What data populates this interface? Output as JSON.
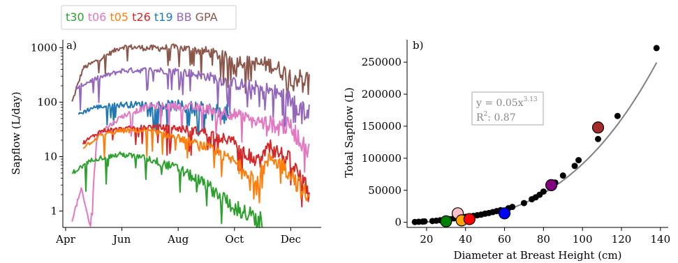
{
  "legend": {
    "entries": [
      {
        "label": "t30",
        "color": "#2ca02c"
      },
      {
        "label": "t06",
        "color": "#e377c2"
      },
      {
        "label": "t05",
        "color": "#ff7f0e"
      },
      {
        "label": "t26",
        "color": "#d62728"
      },
      {
        "label": "t19",
        "color": "#1f77b4"
      },
      {
        "label": "BB",
        "color": "#9467bd"
      },
      {
        "label": "GPA",
        "color": "#8c564b"
      }
    ]
  },
  "chart_data": [
    {
      "type": "line",
      "panel_label": "a)",
      "ylabel": "Sapflow (L/day)",
      "yscale": "log",
      "ylim": [
        0.5,
        1400
      ],
      "yticks": [
        1,
        10,
        100,
        1000
      ],
      "ytick_labels": [
        "1",
        "10",
        "100",
        "1000"
      ],
      "xlim": [
        "2021-03-29",
        "2022-01-03"
      ],
      "xticks": [
        "2021-04-01",
        "2021-06-01",
        "2021-08-01",
        "2021-10-01",
        "2021-12-01"
      ],
      "xtick_labels": [
        "Apr",
        "Jun",
        "Aug",
        "Oct",
        "Dec"
      ],
      "series": [
        {
          "name": "GPA",
          "color": "#8c564b",
          "start": "2021-04-08",
          "end": "2021-12-21",
          "points": [
            [
              "2021-04-08",
              100
            ],
            [
              "2021-04-20",
              420
            ],
            [
              "2021-05-10",
              650
            ],
            [
              "2021-06-01",
              1050
            ],
            [
              "2021-07-01",
              980
            ],
            [
              "2021-08-01",
              1000
            ],
            [
              "2021-09-01",
              850
            ],
            [
              "2021-10-01",
              600
            ],
            [
              "2021-10-20",
              520
            ],
            [
              "2021-11-10",
              480
            ],
            [
              "2021-12-01",
              300
            ],
            [
              "2021-12-21",
              250
            ]
          ]
        },
        {
          "name": "BB",
          "color": "#9467bd",
          "start": "2021-04-12",
          "end": "2021-12-21",
          "points": [
            [
              "2021-04-12",
              180
            ],
            [
              "2021-05-01",
              260
            ],
            [
              "2021-06-01",
              380
            ],
            [
              "2021-07-01",
              390
            ],
            [
              "2021-08-01",
              370
            ],
            [
              "2021-09-01",
              300
            ],
            [
              "2021-10-01",
              220
            ],
            [
              "2021-10-20",
              190
            ],
            [
              "2021-11-10",
              160
            ],
            [
              "2021-12-01",
              110
            ],
            [
              "2021-12-21",
              60
            ]
          ]
        },
        {
          "name": "t19",
          "color": "#1f77b4",
          "start": "2021-04-15",
          "end": "2021-09-25",
          "points": [
            [
              "2021-04-15",
              60
            ],
            [
              "2021-05-01",
              80
            ],
            [
              "2021-06-01",
              90
            ],
            [
              "2021-07-01",
              90
            ],
            [
              "2021-08-01",
              85
            ],
            [
              "2021-09-01",
              70
            ],
            [
              "2021-09-25",
              60
            ]
          ]
        },
        {
          "name": "t06",
          "color": "#e377c2",
          "start": "2021-04-08",
          "end": "2021-12-21",
          "points": [
            [
              "2021-04-08",
              0.7
            ],
            [
              "2021-04-18",
              2.5
            ],
            [
              "2021-04-28",
              0.5
            ],
            [
              "2021-05-05",
              25
            ],
            [
              "2021-06-01",
              55
            ],
            [
              "2021-07-01",
              85
            ],
            [
              "2021-08-01",
              85
            ],
            [
              "2021-09-01",
              75
            ],
            [
              "2021-10-01",
              60
            ],
            [
              "2021-10-20",
              45
            ],
            [
              "2021-11-10",
              40
            ],
            [
              "2021-12-01",
              35
            ],
            [
              "2021-12-21",
              12
            ]
          ]
        },
        {
          "name": "t26",
          "color": "#d62728",
          "start": "2021-04-20",
          "end": "2021-12-21",
          "points": [
            [
              "2021-04-20",
              18
            ],
            [
              "2021-05-10",
              30
            ],
            [
              "2021-06-01",
              32
            ],
            [
              "2021-07-01",
              35
            ],
            [
              "2021-08-01",
              33
            ],
            [
              "2021-09-01",
              28
            ],
            [
              "2021-10-01",
              18
            ],
            [
              "2021-10-25",
              8
            ],
            [
              "2021-11-10",
              15
            ],
            [
              "2021-12-01",
              8
            ],
            [
              "2021-12-21",
              2
            ]
          ]
        },
        {
          "name": "t05",
          "color": "#ff7f0e",
          "start": "2021-04-20",
          "end": "2021-12-21",
          "points": [
            [
              "2021-04-20",
              15
            ],
            [
              "2021-05-10",
              25
            ],
            [
              "2021-06-01",
              30
            ],
            [
              "2021-07-01",
              30
            ],
            [
              "2021-08-01",
              22
            ],
            [
              "2021-09-01",
              15
            ],
            [
              "2021-10-01",
              8
            ],
            [
              "2021-10-25",
              4
            ],
            [
              "2021-11-10",
              10
            ],
            [
              "2021-12-01",
              5
            ],
            [
              "2021-12-21",
              1.5
            ]
          ]
        },
        {
          "name": "t30",
          "color": "#2ca02c",
          "start": "2021-04-08",
          "end": "2021-10-31",
          "points": [
            [
              "2021-04-08",
              5
            ],
            [
              "2021-05-01",
              9
            ],
            [
              "2021-06-01",
              11
            ],
            [
              "2021-07-01",
              9
            ],
            [
              "2021-08-01",
              6
            ],
            [
              "2021-09-01",
              3
            ],
            [
              "2021-10-01",
              1.2
            ],
            [
              "2021-10-31",
              0.6
            ]
          ]
        }
      ]
    },
    {
      "type": "scatter",
      "panel_label": "b)",
      "xlabel": "Diameter at Breast Height (cm)",
      "ylabel": "Total Sapflow (L)",
      "xlim": [
        10,
        144
      ],
      "ylim": [
        -8000,
        285000
      ],
      "xticks": [
        20,
        40,
        60,
        80,
        100,
        120,
        140
      ],
      "yticks": [
        0,
        50000,
        100000,
        150000,
        200000,
        250000
      ],
      "annotation": [
        "y = 0.05x",
        "3.13",
        "R",
        "2",
        ": 0.87"
      ],
      "fit": {
        "a": 0.05,
        "b": 3.13,
        "x_range": [
          14,
          138
        ],
        "color": "#808080"
      },
      "points": [
        [
          14,
          500
        ],
        [
          16,
          800
        ],
        [
          18,
          1100
        ],
        [
          19,
          1400
        ],
        [
          23,
          2000
        ],
        [
          25,
          2500
        ],
        [
          27,
          3200
        ],
        [
          29,
          3800
        ],
        [
          32,
          5000
        ],
        [
          34,
          6200
        ],
        [
          38,
          8000
        ],
        [
          40,
          8500
        ],
        [
          44,
          10000
        ],
        [
          46,
          11000
        ],
        [
          48,
          12000
        ],
        [
          50,
          13500
        ],
        [
          52,
          14500
        ],
        [
          54,
          16000
        ],
        [
          56,
          17500
        ],
        [
          58,
          19000
        ],
        [
          62,
          22000
        ],
        [
          64,
          24000
        ],
        [
          70,
          30000
        ],
        [
          74,
          36000
        ],
        [
          76,
          39000
        ],
        [
          78,
          43000
        ],
        [
          80,
          48000
        ],
        [
          86,
          62000
        ],
        [
          90,
          73000
        ],
        [
          96,
          88000
        ],
        [
          98,
          97000
        ],
        [
          108,
          130000
        ],
        [
          118,
          166000
        ],
        [
          138,
          272000
        ]
      ],
      "highlight": [
        {
          "label": "t30",
          "x": 30,
          "y": 1500,
          "color": "#008000"
        },
        {
          "label": "t06",
          "x": 36,
          "y": 14000,
          "color": "#ffc0cb"
        },
        {
          "label": "t05",
          "x": 38,
          "y": 3000,
          "color": "#ffa500"
        },
        {
          "label": "t26",
          "x": 42,
          "y": 5000,
          "color": "#ff0000"
        },
        {
          "label": "t19",
          "x": 60,
          "y": 14000,
          "color": "#0000ff"
        },
        {
          "label": "BB",
          "x": 84,
          "y": 58000,
          "color": "#800080"
        },
        {
          "label": "GPA",
          "x": 108,
          "y": 148000,
          "color": "#a52a2a"
        }
      ]
    }
  ]
}
